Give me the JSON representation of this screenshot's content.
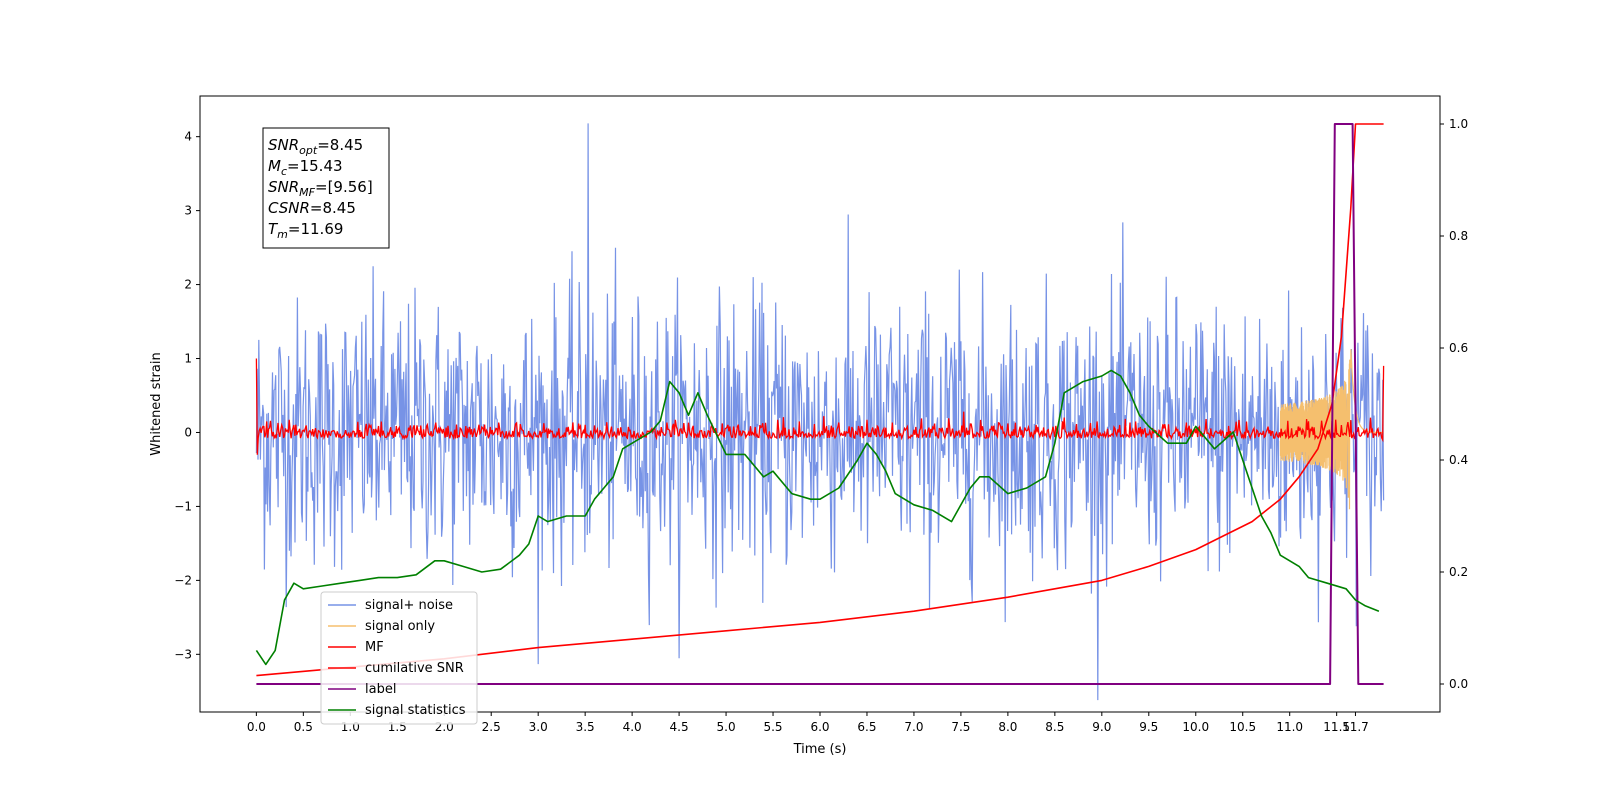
{
  "chart_data": {
    "type": "line",
    "xlabel": "Time (s)",
    "ylabel": "Whitened strain",
    "xlim": [
      -0.6,
      12.6
    ],
    "ylim": [
      -3.78,
      4.55
    ],
    "y2lim": [
      -0.05,
      1.05
    ],
    "grid": false,
    "legend_placement": "lower-left",
    "x_ticks": [
      "0.0",
      "0.5",
      "1.0",
      "1.5",
      "2.0",
      "2.5",
      "3.0",
      "3.5",
      "4.0",
      "4.5",
      "5.0",
      "5.5",
      "6.0",
      "6.5",
      "7.0",
      "7.5",
      "8.0",
      "8.5",
      "9.0",
      "9.5",
      "10.0",
      "10.5",
      "11.0",
      "11.5",
      "11.7"
    ],
    "y_ticks": [
      "4",
      "3",
      "2",
      "1",
      "0",
      "−1",
      "−2",
      "−3"
    ],
    "y2_ticks": [
      "1.0",
      "0.8",
      "0.6",
      "0.4",
      "0.2",
      "0.0"
    ],
    "annotation": [
      {
        "sym": "SNR",
        "sub": "opt",
        "val": "=8.45"
      },
      {
        "sym": "M",
        "sub": "c",
        "val": "=15.43"
      },
      {
        "sym": "SNR",
        "sub": "MF",
        "val": "=[9.56]"
      },
      {
        "sym": "CSNR",
        "sub": "",
        "val": "=8.45"
      },
      {
        "sym": "T",
        "sub": "m",
        "val": "=11.69"
      }
    ],
    "series": [
      {
        "name": "signal+ noise",
        "color": "#7793e6",
        "axis": "left",
        "t_range": [
          0,
          12
        ],
        "noise_sigma": 0.9,
        "peak": 4.18
      },
      {
        "name": "signal only",
        "color": "#f5bf6e",
        "axis": "left",
        "t_range": [
          10.9,
          12
        ],
        "peak_amplitude": 1.5,
        "peak_time": 11.65
      },
      {
        "name": "MF",
        "color": "#ff0000",
        "axis": "left",
        "t_range": [
          0,
          12
        ],
        "noise_sigma": 0.08,
        "start_value": 1.0,
        "end_value": 0.9
      },
      {
        "name": "cumilative SNR",
        "color": "#ff0000",
        "axis": "right",
        "x": [
          0,
          1,
          2,
          3,
          4,
          5,
          6,
          7,
          8,
          8.5,
          9,
          9.5,
          10,
          10.3,
          10.6,
          10.9,
          11.1,
          11.3,
          11.45,
          11.55,
          11.65,
          11.7,
          12
        ],
        "y": [
          0.015,
          0.03,
          0.045,
          0.065,
          0.08,
          0.095,
          0.11,
          0.13,
          0.155,
          0.17,
          0.185,
          0.21,
          0.24,
          0.265,
          0.29,
          0.33,
          0.37,
          0.42,
          0.5,
          0.62,
          0.85,
          1.0,
          1.0
        ]
      },
      {
        "name": "label",
        "color": "#800080",
        "axis": "right",
        "x": [
          0,
          11.43,
          11.48,
          11.67,
          11.73,
          12
        ],
        "y": [
          0,
          0,
          1,
          1,
          0,
          0
        ]
      },
      {
        "name": "signal statistics",
        "color": "#008000",
        "axis": "right",
        "x": [
          0,
          0.1,
          0.2,
          0.3,
          0.4,
          0.5,
          0.7,
          0.9,
          1.1,
          1.3,
          1.5,
          1.7,
          1.9,
          2.0,
          2.2,
          2.4,
          2.6,
          2.8,
          2.9,
          3.0,
          3.1,
          3.3,
          3.5,
          3.6,
          3.7,
          3.8,
          3.9,
          4.0,
          4.2,
          4.3,
          4.4,
          4.5,
          4.6,
          4.7,
          4.8,
          5.0,
          5.2,
          5.4,
          5.5,
          5.7,
          5.9,
          6.0,
          6.2,
          6.4,
          6.5,
          6.6,
          6.7,
          6.8,
          7.0,
          7.2,
          7.4,
          7.6,
          7.7,
          7.8,
          8.0,
          8.2,
          8.4,
          8.5,
          8.6,
          8.8,
          9.0,
          9.1,
          9.2,
          9.3,
          9.4,
          9.5,
          9.7,
          9.9,
          10.0,
          10.2,
          10.4,
          10.5,
          10.6,
          10.7,
          10.8,
          10.9,
          11.0,
          11.1,
          11.2,
          11.4,
          11.6,
          11.7,
          11.8,
          11.95
        ],
        "y": [
          0.06,
          0.035,
          0.06,
          0.15,
          0.18,
          0.17,
          0.175,
          0.18,
          0.185,
          0.19,
          0.19,
          0.195,
          0.22,
          0.22,
          0.21,
          0.2,
          0.205,
          0.23,
          0.25,
          0.3,
          0.29,
          0.3,
          0.3,
          0.33,
          0.35,
          0.37,
          0.42,
          0.43,
          0.45,
          0.47,
          0.54,
          0.52,
          0.48,
          0.52,
          0.48,
          0.41,
          0.41,
          0.37,
          0.38,
          0.34,
          0.33,
          0.33,
          0.35,
          0.4,
          0.43,
          0.41,
          0.38,
          0.34,
          0.32,
          0.31,
          0.29,
          0.35,
          0.37,
          0.37,
          0.34,
          0.35,
          0.37,
          0.43,
          0.52,
          0.54,
          0.55,
          0.56,
          0.55,
          0.52,
          0.48,
          0.46,
          0.43,
          0.43,
          0.46,
          0.42,
          0.45,
          0.4,
          0.35,
          0.3,
          0.27,
          0.23,
          0.22,
          0.21,
          0.19,
          0.18,
          0.17,
          0.15,
          0.14,
          0.13
        ]
      }
    ]
  }
}
